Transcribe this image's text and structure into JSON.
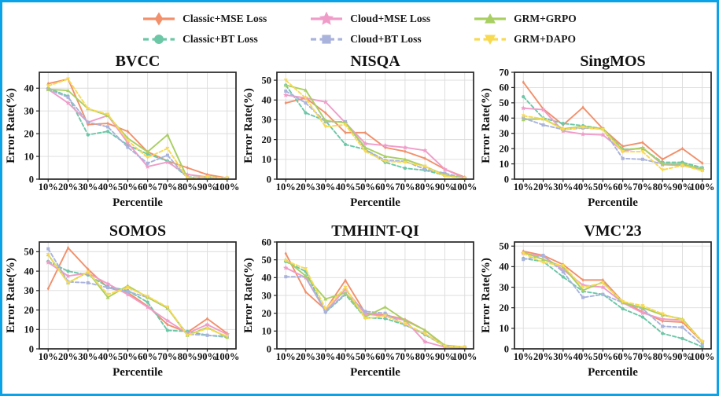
{
  "figure": {
    "border_color": "#0ba3e8",
    "background": "#ffffff",
    "grid_color": "#dcdcdc",
    "spine_color": "#262626"
  },
  "legend": {
    "position": "top-center",
    "items": [
      {
        "label": "Classic+MSE Loss",
        "color": "#f2906b",
        "dash": false,
        "marker": "thin-diamond"
      },
      {
        "label": "Classic+BT Loss",
        "color": "#6cc7a7",
        "dash": true,
        "marker": "circle"
      },
      {
        "label": "Cloud+MSE Loss",
        "color": "#f09cc9",
        "dash": false,
        "marker": "star"
      },
      {
        "label": "Cloud+BT Loss",
        "color": "#a9b3dc",
        "dash": true,
        "marker": "square"
      },
      {
        "label": "GRM+GRPO",
        "color": "#a9cf62",
        "dash": false,
        "marker": "triangle-up"
      },
      {
        "label": "GRM+DAPO",
        "color": "#f8d952",
        "dash": true,
        "marker": "triangle-down"
      }
    ]
  },
  "chart_data": [
    {
      "type": "line",
      "title": "BVCC",
      "xlabel": "Percentile",
      "ylabel": "Error Rate(%)",
      "categories": [
        "10%",
        "20%",
        "30%",
        "40%",
        "50%",
        "60%",
        "70%",
        "80%",
        "90%",
        "100%"
      ],
      "ylim": [
        0,
        47
      ],
      "yticks": [
        0,
        10,
        20,
        30,
        40
      ],
      "grid": true,
      "series": [
        {
          "name": "Classic+MSE Loss",
          "values": [
            42,
            44,
            24,
            24.5,
            21,
            12,
            8,
            5,
            2,
            0.5
          ]
        },
        {
          "name": "Classic+BT Loss",
          "values": [
            40,
            36.5,
            19.5,
            21,
            15,
            11,
            8,
            1,
            0.5,
            0.5
          ]
        },
        {
          "name": "Cloud+MSE Loss",
          "values": [
            39.5,
            33.5,
            25,
            28,
            16,
            5.5,
            7.5,
            2,
            1,
            0.5
          ]
        },
        {
          "name": "Cloud+BT Loss",
          "values": [
            39.5,
            36,
            25,
            23,
            14,
            7,
            10.5,
            0.5,
            0.3,
            0.3
          ]
        },
        {
          "name": "GRM+GRPO",
          "values": [
            39.5,
            39,
            31,
            28,
            18,
            12,
            19.5,
            0.5,
            1,
            0.5
          ]
        },
        {
          "name": "GRM+DAPO",
          "values": [
            41,
            44,
            31,
            28.5,
            17,
            9.5,
            13.5,
            0.5,
            1,
            0.5
          ]
        }
      ]
    },
    {
      "type": "line",
      "title": "NISQA",
      "xlabel": "Percentile",
      "ylabel": "Error Rate(%)",
      "categories": [
        "10%",
        "20%",
        "30%",
        "40%",
        "50%",
        "60%",
        "70%",
        "80%",
        "90%",
        "100%"
      ],
      "ylim": [
        0,
        54
      ],
      "yticks": [
        0,
        10,
        20,
        30,
        40,
        50
      ],
      "grid": true,
      "series": [
        {
          "name": "Classic+MSE Loss",
          "values": [
            38.5,
            41,
            33.5,
            23.5,
            23.5,
            16,
            14,
            10.5,
            5,
            1
          ]
        },
        {
          "name": "Classic+BT Loss",
          "values": [
            47.5,
            33.5,
            29.5,
            17.5,
            15,
            8.5,
            5.5,
            4.5,
            2,
            0.5
          ]
        },
        {
          "name": "Cloud+MSE Loss",
          "values": [
            42.5,
            41,
            39,
            28.5,
            18,
            17,
            16,
            14.5,
            5,
            0.5
          ]
        },
        {
          "name": "Cloud+BT Loss",
          "values": [
            44.5,
            38.5,
            29,
            29,
            15,
            9.5,
            9,
            5,
            3,
            0.5
          ]
        },
        {
          "name": "GRM+GRPO",
          "values": [
            47.5,
            45,
            29.5,
            28.5,
            16,
            11.5,
            10,
            6.5,
            2,
            0.5
          ]
        },
        {
          "name": "GRM+DAPO",
          "values": [
            50,
            41,
            26.5,
            27.5,
            14,
            9,
            8.5,
            6.5,
            1.5,
            0.5
          ]
        }
      ]
    },
    {
      "type": "line",
      "title": "SingMOS",
      "xlabel": "Percentile",
      "ylabel": "Error Rate(%)",
      "categories": [
        "10%",
        "20%",
        "30%",
        "40%",
        "50%",
        "60%",
        "70%",
        "80%",
        "90%",
        "100%"
      ],
      "ylim": [
        0,
        70
      ],
      "yticks": [
        0,
        10,
        20,
        30,
        40,
        50,
        60,
        70
      ],
      "grid": true,
      "series": [
        {
          "name": "Classic+MSE Loss",
          "values": [
            63.5,
            46,
            35.5,
            47,
            33,
            21.5,
            24,
            13,
            20,
            10.5
          ]
        },
        {
          "name": "Classic+BT Loss",
          "values": [
            54,
            40,
            36.5,
            35,
            33,
            19.5,
            20,
            11,
            11,
            7.5
          ]
        },
        {
          "name": "Cloud+MSE Loss",
          "values": [
            46.5,
            45.5,
            31.5,
            29.5,
            29,
            18.5,
            20.5,
            9.5,
            9,
            6
          ]
        },
        {
          "name": "Cloud+BT Loss",
          "values": [
            40,
            35.5,
            32.5,
            33.5,
            33,
            13.5,
            13,
            10,
            9.5,
            7
          ]
        },
        {
          "name": "GRM+GRPO",
          "values": [
            39,
            39.5,
            33,
            34.5,
            33,
            19,
            20.5,
            10,
            10,
            6.5
          ]
        },
        {
          "name": "GRM+DAPO",
          "values": [
            41.5,
            39.5,
            32.5,
            34,
            32.5,
            18,
            18,
            6,
            9,
            5.5
          ]
        }
      ]
    },
    {
      "type": "line",
      "title": "SOMOS",
      "xlabel": "Percentile",
      "ylabel": "Error Rate(%)",
      "categories": [
        "10%",
        "20%",
        "30%",
        "40%",
        "50%",
        "60%",
        "70%",
        "80%",
        "90%",
        "100%"
      ],
      "ylim": [
        0,
        55
      ],
      "yticks": [
        0,
        10,
        20,
        30,
        40,
        50
      ],
      "grid": true,
      "series": [
        {
          "name": "Classic+MSE Loss",
          "values": [
            31,
            52,
            41,
            31.5,
            29,
            22,
            12.5,
            8.5,
            15.5,
            8
          ]
        },
        {
          "name": "Classic+BT Loss",
          "values": [
            45,
            40,
            38,
            32,
            30,
            24,
            9.5,
            9,
            7,
            6
          ]
        },
        {
          "name": "Cloud+MSE Loss",
          "values": [
            44.5,
            37.5,
            39,
            33.5,
            28,
            21.5,
            14.5,
            8,
            12.5,
            7.5
          ]
        },
        {
          "name": "Cloud+BT Loss",
          "values": [
            51.5,
            34.5,
            34,
            31.5,
            29.5,
            26.5,
            21,
            7.5,
            7,
            6.5
          ]
        },
        {
          "name": "GRM+GRPO",
          "values": [
            48.5,
            34,
            39.5,
            26.5,
            32.5,
            26.5,
            21,
            7,
            11,
            6
          ]
        },
        {
          "name": "GRM+DAPO",
          "values": [
            48.5,
            34,
            39.5,
            28,
            31.5,
            27,
            21.5,
            7,
            10.5,
            6.5
          ]
        }
      ]
    },
    {
      "type": "line",
      "title": "TMHINT-QI",
      "xlabel": "Percentile",
      "ylabel": "Error Rate(%)",
      "categories": [
        "10%",
        "20%",
        "30%",
        "40%",
        "50%",
        "60%",
        "70%",
        "80%",
        "90%",
        "100%"
      ],
      "ylim": [
        0,
        60
      ],
      "yticks": [
        0,
        10,
        20,
        30,
        40,
        50,
        60
      ],
      "grid": true,
      "series": [
        {
          "name": "Classic+MSE Loss",
          "values": [
            53.5,
            32,
            22,
            38.5,
            20,
            19,
            16.5,
            10.5,
            1.5,
            1
          ]
        },
        {
          "name": "Classic+BT Loss",
          "values": [
            49,
            43.5,
            20.5,
            30.5,
            17.5,
            17,
            13.5,
            8,
            1.5,
            1
          ]
        },
        {
          "name": "Cloud+MSE Loss",
          "values": [
            45.5,
            40,
            21,
            33.5,
            19.5,
            18.5,
            16,
            4,
            1,
            0.5
          ]
        },
        {
          "name": "Cloud+BT Loss",
          "values": [
            40.5,
            40.5,
            21,
            31,
            21,
            20,
            13.5,
            8.5,
            1.5,
            1
          ]
        },
        {
          "name": "GRM+GRPO",
          "values": [
            50,
            41,
            28,
            31.5,
            18,
            23.5,
            16,
            10.5,
            2,
            1
          ]
        },
        {
          "name": "GRM+DAPO",
          "values": [
            49.5,
            45,
            22.5,
            34.5,
            17,
            18.5,
            14,
            8.5,
            1.5,
            1
          ]
        }
      ]
    },
    {
      "type": "line",
      "title": "VMC'23",
      "xlabel": "Percentile",
      "ylabel": "Error Rate(%)",
      "categories": [
        "10%",
        "20%",
        "30%",
        "40%",
        "50%",
        "60%",
        "70%",
        "80%",
        "90%",
        "100%"
      ],
      "ylim": [
        0,
        52
      ],
      "yticks": [
        0,
        10,
        20,
        30,
        40,
        50
      ],
      "grid": true,
      "series": [
        {
          "name": "Classic+MSE Loss",
          "values": [
            47.5,
            45.5,
            41,
            33.5,
            33.5,
            23,
            18,
            13.5,
            13,
            3.5
          ]
        },
        {
          "name": "Classic+BT Loss",
          "values": [
            44,
            42.5,
            35,
            28,
            26.5,
            19.5,
            15.5,
            7.5,
            5,
            1
          ]
        },
        {
          "name": "Cloud+MSE Loss",
          "values": [
            46.5,
            45,
            38.5,
            31,
            30,
            22.5,
            17.5,
            14.5,
            14,
            3.5
          ]
        },
        {
          "name": "Cloud+BT Loss",
          "values": [
            43.5,
            45.5,
            37.5,
            25,
            26.5,
            22.5,
            19.5,
            11,
            10.5,
            2
          ]
        },
        {
          "name": "GRM+GRPO",
          "values": [
            47,
            43.5,
            40,
            28.5,
            32.5,
            22.5,
            20,
            16.5,
            14.5,
            3.5
          ]
        },
        {
          "name": "GRM+DAPO",
          "values": [
            46.5,
            42,
            40.5,
            30,
            32,
            23,
            21,
            17,
            14,
            3.5
          ]
        }
      ]
    }
  ]
}
